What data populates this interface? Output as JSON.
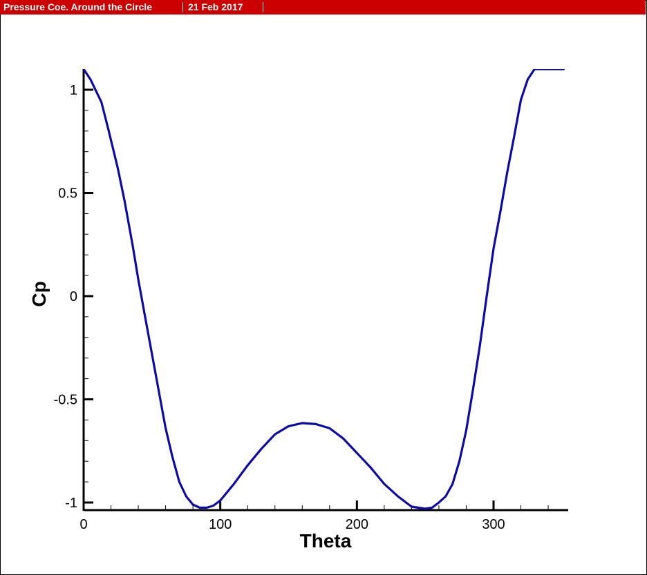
{
  "header": {
    "title": "Pressure Coe. Around the Circle",
    "date": "21 Feb 2017"
  },
  "colors": {
    "header_bg": "#cc0000",
    "series": "#0a0aa8",
    "axis": "#000000"
  },
  "chart_data": {
    "type": "line",
    "title": "Pressure Coe. Around the Circle",
    "xlabel": "Theta",
    "ylabel": "Cp",
    "xlim": [
      0,
      354
    ],
    "ylim": [
      -1.03,
      1.1
    ],
    "xticks": [
      0,
      100,
      200,
      300
    ],
    "yticks": [
      1,
      0.5,
      0,
      -0.5,
      -1
    ],
    "xtick_labels": [
      "0",
      "100",
      "200",
      "300"
    ],
    "ytick_labels": [
      "1",
      "0.5",
      "0",
      "-0.5",
      "-1"
    ],
    "grid": false,
    "legend": "none",
    "series": [
      {
        "x": [
          0,
          5,
          13,
          18,
          25,
          30,
          36,
          40,
          45,
          50,
          55,
          60,
          65,
          70,
          75,
          80,
          85,
          90,
          95,
          100,
          110,
          120,
          130,
          140,
          150,
          160,
          170,
          175,
          180,
          190,
          200,
          210,
          220,
          230,
          240,
          250,
          255,
          260,
          265,
          270,
          275,
          280,
          285,
          290,
          295,
          300,
          305,
          310,
          315,
          320,
          325,
          330,
          335,
          340,
          345,
          350,
          352
        ],
        "y": [
          1.1,
          1.05,
          0.94,
          0.81,
          0.62,
          0.46,
          0.24,
          0.08,
          -0.1,
          -0.28,
          -0.46,
          -0.64,
          -0.78,
          -0.9,
          -0.97,
          -1.01,
          -1.025,
          -1.025,
          -1.015,
          -0.99,
          -0.91,
          -0.82,
          -0.74,
          -0.67,
          -0.63,
          -0.615,
          -0.62,
          -0.63,
          -0.64,
          -0.69,
          -0.76,
          -0.83,
          -0.91,
          -0.97,
          -1.02,
          -1.03,
          -1.025,
          -1.0,
          -0.97,
          -0.91,
          -0.8,
          -0.65,
          -0.45,
          -0.24,
          -0.0,
          0.23,
          0.41,
          0.6,
          0.77,
          0.95,
          1.05,
          1.1,
          1.1,
          1.1,
          1.1,
          1.1,
          1.1
        ]
      }
    ]
  }
}
